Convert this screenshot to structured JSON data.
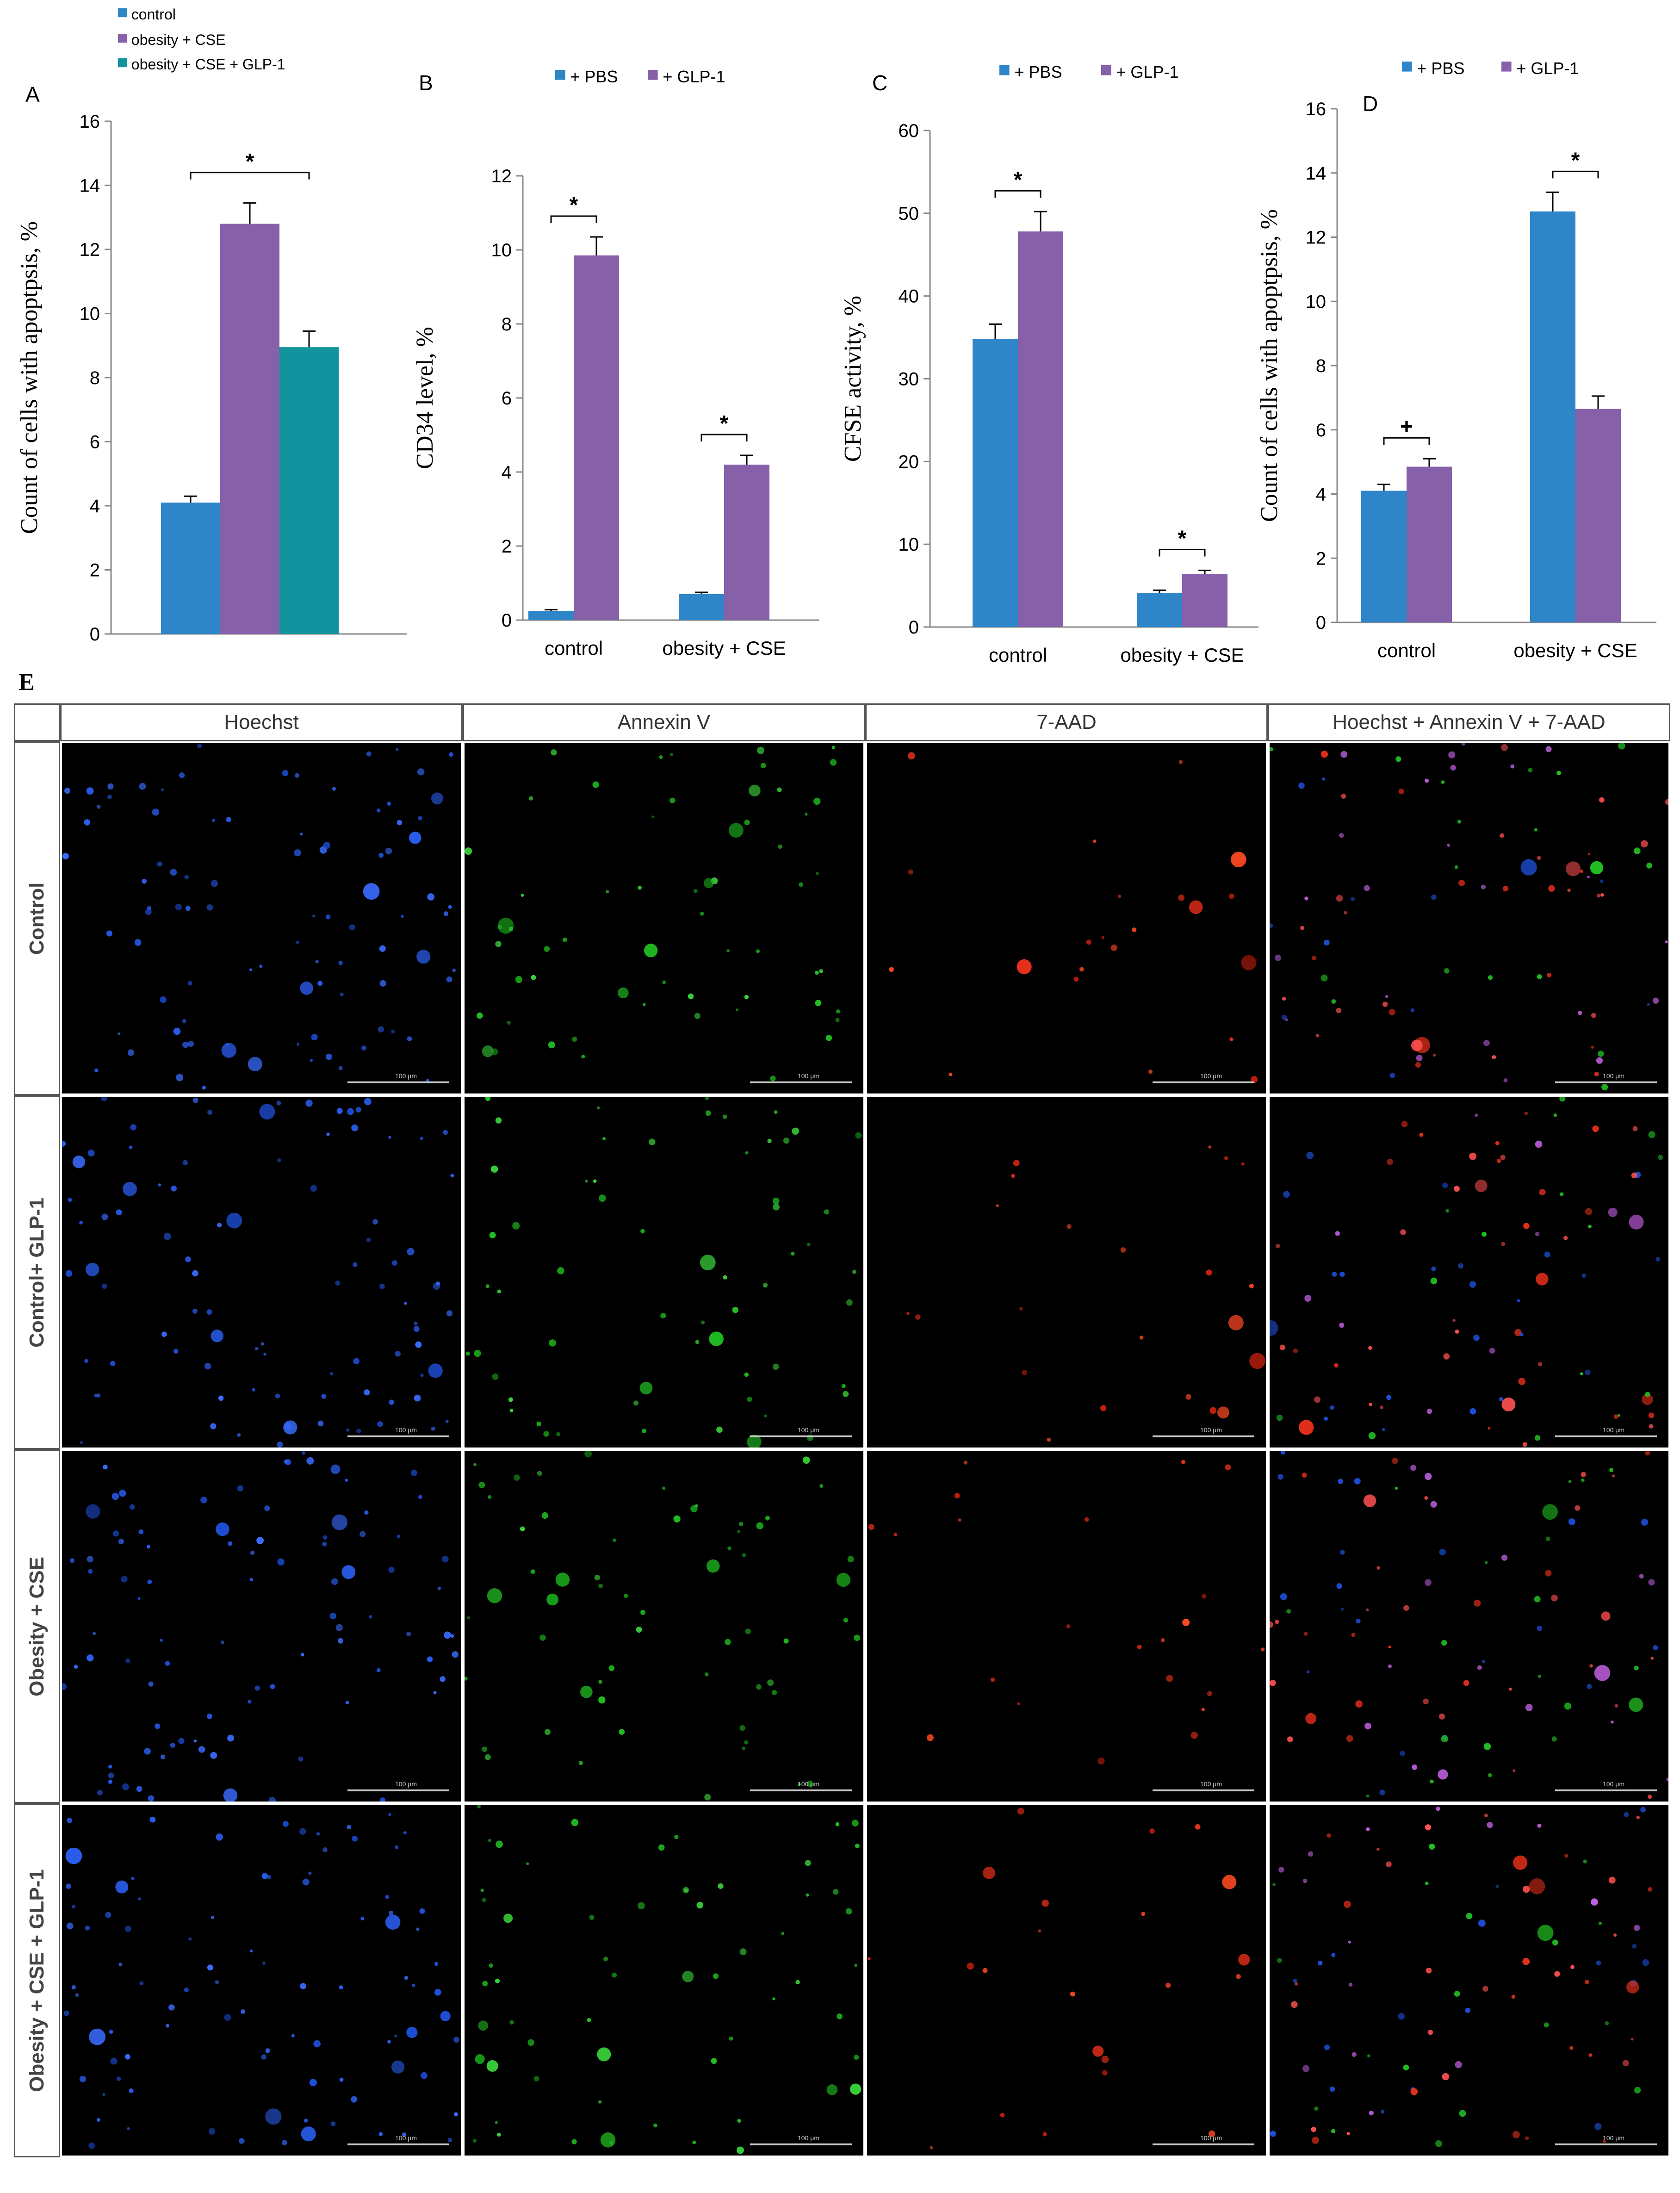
{
  "colors": {
    "blue": "#2E86C8",
    "purple": "#8660A8",
    "teal": "#12949E"
  },
  "chart_data": [
    {
      "panel": "A",
      "type": "bar",
      "ylabel": "Count of cells with apoptpsis, %",
      "ylim": [
        0,
        16
      ],
      "yticks": [
        0,
        2,
        4,
        6,
        8,
        10,
        12,
        14,
        16
      ],
      "legend": [
        "control",
        "obesity + CSE",
        "obesity + CSE + GLP-1"
      ],
      "legend_placement": "top-left",
      "categories": [
        ""
      ],
      "series": [
        {
          "name": "control",
          "values": [
            4.1
          ],
          "errors": [
            0.2
          ]
        },
        {
          "name": "obesity + CSE",
          "values": [
            12.8
          ],
          "errors": [
            0.65
          ]
        },
        {
          "name": "obesity + CSE + GLP-1",
          "values": [
            8.95
          ],
          "errors": [
            0.5
          ]
        }
      ],
      "annotations": [
        {
          "text": "*",
          "from": 0,
          "to": 2
        }
      ]
    },
    {
      "panel": "B",
      "type": "bar",
      "ylabel": "CD34 level, %",
      "ylim": [
        0,
        12
      ],
      "yticks": [
        0,
        2,
        4,
        6,
        8,
        10,
        12
      ],
      "legend": [
        "+ PBS",
        "+ GLP-1"
      ],
      "legend_placement": "top",
      "categories": [
        "control",
        "obesity + CSE"
      ],
      "series": [
        {
          "name": "+ PBS",
          "values": [
            0.25,
            0.7
          ],
          "errors": [
            0.03,
            0.05
          ]
        },
        {
          "name": "+ GLP-1",
          "values": [
            9.85,
            4.2
          ],
          "errors": [
            0.5,
            0.25
          ]
        }
      ],
      "annotations": [
        {
          "text": "*",
          "category": 0
        },
        {
          "text": "*",
          "category": 1
        }
      ]
    },
    {
      "panel": "C",
      "type": "bar",
      "ylabel": "CFSE activity, %",
      "ylim": [
        0,
        60
      ],
      "yticks": [
        0,
        10,
        20,
        30,
        40,
        50,
        60
      ],
      "legend": [
        "+ PBS",
        "+ GLP-1"
      ],
      "legend_placement": "top",
      "categories": [
        "control",
        "obesity + CSE"
      ],
      "series": [
        {
          "name": "+ PBS",
          "values": [
            34.8,
            4.1
          ],
          "errors": [
            1.8,
            0.35
          ]
        },
        {
          "name": "+ GLP-1",
          "values": [
            47.8,
            6.4
          ],
          "errors": [
            2.4,
            0.45
          ]
        }
      ],
      "annotations": [
        {
          "text": "*",
          "category": 0
        },
        {
          "text": "*",
          "category": 1
        }
      ]
    },
    {
      "panel": "D",
      "type": "bar",
      "ylabel": "Count of cells with apoptpsis, %",
      "ylim": [
        0,
        16
      ],
      "yticks": [
        0,
        2,
        4,
        6,
        8,
        10,
        12,
        14,
        16
      ],
      "legend": [
        "+ PBS",
        "+ GLP-1"
      ],
      "legend_placement": "top",
      "categories": [
        "control",
        "obesity + CSE"
      ],
      "series": [
        {
          "name": "+ PBS",
          "values": [
            4.1,
            12.8
          ],
          "errors": [
            0.2,
            0.6
          ]
        },
        {
          "name": "+ GLP-1",
          "values": [
            4.85,
            6.65
          ],
          "errors": [
            0.25,
            0.4
          ]
        }
      ],
      "annotations": [
        {
          "text": "+",
          "category": 0
        },
        {
          "text": "*",
          "category": 1
        }
      ]
    }
  ],
  "panel_e": {
    "label": "E",
    "columns": [
      "Hoechst",
      "Annexin V",
      "7-AAD",
      "Hoechst + Annexin V + 7-AAD"
    ],
    "rows": [
      "Control",
      "Control+ GLP-1",
      "Obesity + CSE",
      "Obesity + CSE + GLP-1"
    ],
    "scale_label": "100 μm"
  }
}
